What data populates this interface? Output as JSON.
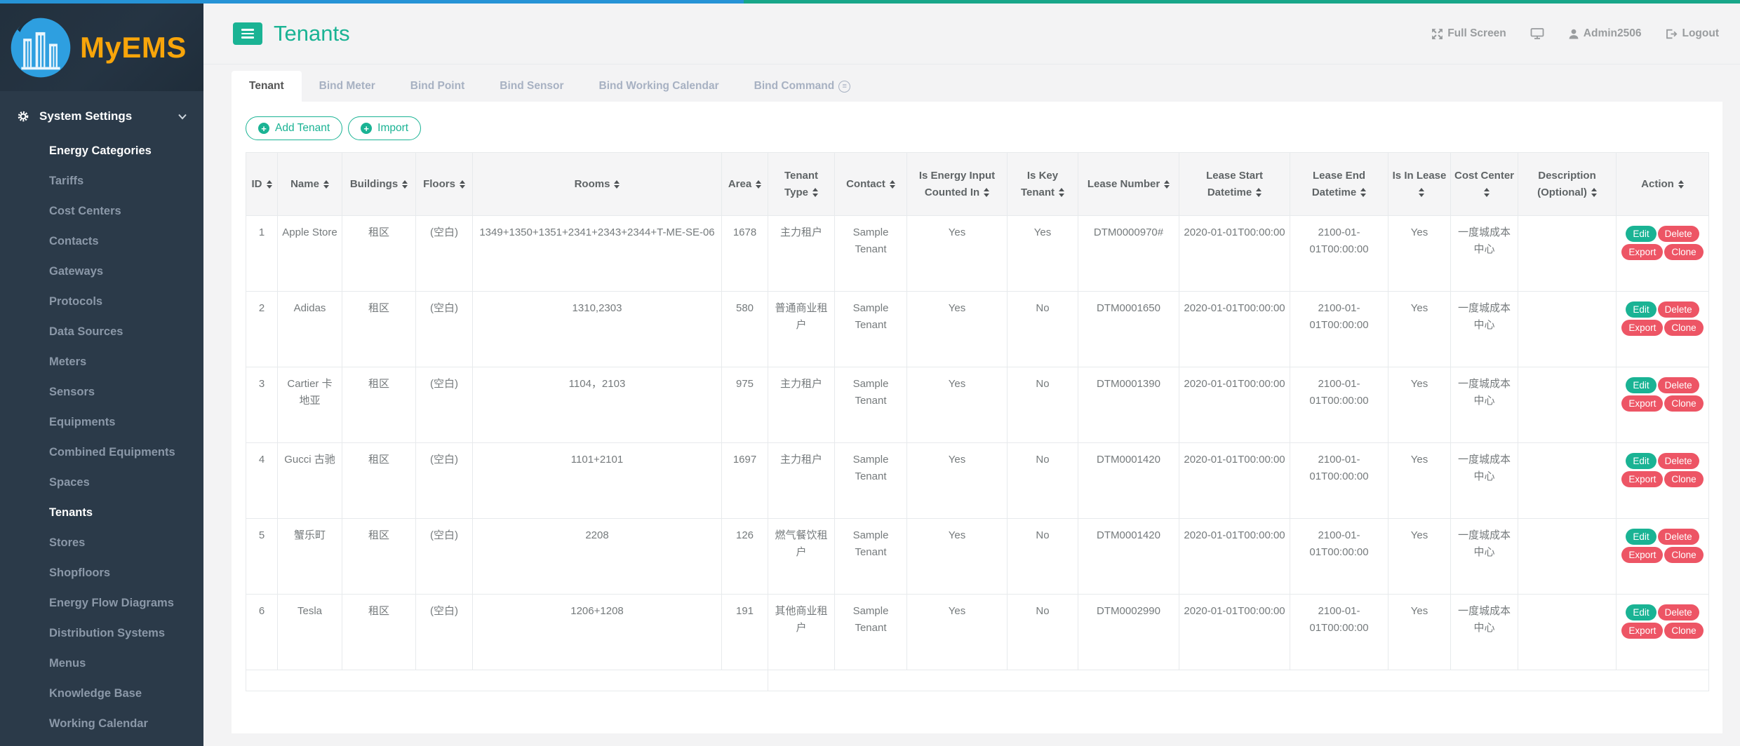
{
  "topbar": {
    "full_screen_label": "Full Screen",
    "username": "Admin2506",
    "logout_label": "Logout"
  },
  "brand": {
    "name": "MyEMS"
  },
  "sidebar": {
    "section_label": "System Settings",
    "items": [
      {
        "label": "Energy Categories",
        "active": true
      },
      {
        "label": "Tariffs",
        "active": false
      },
      {
        "label": "Cost Centers",
        "active": false
      },
      {
        "label": "Contacts",
        "active": false
      },
      {
        "label": "Gateways",
        "active": false
      },
      {
        "label": "Protocols",
        "active": false
      },
      {
        "label": "Data Sources",
        "active": false
      },
      {
        "label": "Meters",
        "active": false
      },
      {
        "label": "Sensors",
        "active": false
      },
      {
        "label": "Equipments",
        "active": false
      },
      {
        "label": "Combined Equipments",
        "active": false
      },
      {
        "label": "Spaces",
        "active": false
      },
      {
        "label": "Tenants",
        "active": true
      },
      {
        "label": "Stores",
        "active": false
      },
      {
        "label": "Shopfloors",
        "active": false
      },
      {
        "label": "Energy Flow Diagrams",
        "active": false
      },
      {
        "label": "Distribution Systems",
        "active": false
      },
      {
        "label": "Menus",
        "active": false
      },
      {
        "label": "Knowledge Base",
        "active": false
      },
      {
        "label": "Working Calendar",
        "active": false
      }
    ]
  },
  "header": {
    "title": "Tenants"
  },
  "tabs": [
    {
      "label": "Tenant",
      "active": true,
      "icon": ""
    },
    {
      "label": "Bind Meter",
      "active": false,
      "icon": ""
    },
    {
      "label": "Bind Point",
      "active": false,
      "icon": ""
    },
    {
      "label": "Bind Sensor",
      "active": false,
      "icon": ""
    },
    {
      "label": "Bind Working Calendar",
      "active": false,
      "icon": ""
    },
    {
      "label": "Bind Command",
      "active": false,
      "icon": "command-circle-icon"
    }
  ],
  "toolbar": {
    "add_label": "Add Tenant",
    "import_label": "Import"
  },
  "table": {
    "columns": [
      {
        "key": "id",
        "label": "ID"
      },
      {
        "key": "name",
        "label": "Name"
      },
      {
        "key": "buildings",
        "label": "Buildings"
      },
      {
        "key": "floors",
        "label": "Floors"
      },
      {
        "key": "rooms",
        "label": "Rooms"
      },
      {
        "key": "area",
        "label": "Area"
      },
      {
        "key": "tenant-type",
        "label": "Tenant Type"
      },
      {
        "key": "contact",
        "label": "Contact"
      },
      {
        "key": "is-energy-input-counted-in",
        "label": "Is Energy Input Counted In"
      },
      {
        "key": "is-key-tenant",
        "label": "Is Key Tenant"
      },
      {
        "key": "lease-number",
        "label": "Lease Number"
      },
      {
        "key": "lease-start-datetime",
        "label": "Lease Start Datetime"
      },
      {
        "key": "lease-end-datetime",
        "label": "Lease End Datetime"
      },
      {
        "key": "is-in-lease",
        "label": "Is In Lease"
      },
      {
        "key": "cost-center",
        "label": "Cost Center"
      },
      {
        "key": "description",
        "label": "Description (Optional)"
      },
      {
        "key": "action",
        "label": "Action"
      }
    ],
    "rows": [
      [
        "1",
        "Apple Store",
        "租区",
        "(空白)",
        "1349+1350+1351+2341+2343+2344+T-ME-SE-06",
        "1678",
        "主力租户",
        "Sample Tenant",
        "Yes",
        "Yes",
        "DTM0000970#",
        "2020-01-01T00:00:00",
        "2100-01-01T00:00:00",
        "Yes",
        "一度城成本中心",
        ""
      ],
      [
        "2",
        "Adidas",
        "租区",
        "(空白)",
        "1310,2303",
        "580",
        "普通商业租户",
        "Sample Tenant",
        "Yes",
        "No",
        "DTM0001650",
        "2020-01-01T00:00:00",
        "2100-01-01T00:00:00",
        "Yes",
        "一度城成本中心",
        ""
      ],
      [
        "3",
        "Cartier 卡地亚",
        "租区",
        "(空白)",
        "1104，2103",
        "975",
        "主力租户",
        "Sample Tenant",
        "Yes",
        "No",
        "DTM0001390",
        "2020-01-01T00:00:00",
        "2100-01-01T00:00:00",
        "Yes",
        "一度城成本中心",
        ""
      ],
      [
        "4",
        "Gucci 古驰",
        "租区",
        "(空白)",
        "1101+2101",
        "1697",
        "主力租户",
        "Sample Tenant",
        "Yes",
        "No",
        "DTM0001420",
        "2020-01-01T00:00:00",
        "2100-01-01T00:00:00",
        "Yes",
        "一度城成本中心",
        ""
      ],
      [
        "5",
        "蟹乐町",
        "租区",
        "(空白)",
        "2208",
        "126",
        "燃气餐饮租户",
        "Sample Tenant",
        "Yes",
        "No",
        "DTM0001420",
        "2020-01-01T00:00:00",
        "2100-01-01T00:00:00",
        "Yes",
        "一度城成本中心",
        ""
      ],
      [
        "6",
        "Tesla",
        "租区",
        "(空白)",
        "1206+1208",
        "191",
        "其他商业租户",
        "Sample Tenant",
        "Yes",
        "No",
        "DTM0002990",
        "2020-01-01T00:00:00",
        "2100-01-01T00:00:00",
        "Yes",
        "一度城成本中心",
        ""
      ]
    ],
    "actions": [
      {
        "label": "Edit",
        "style": "green"
      },
      {
        "label": "Delete",
        "style": "red"
      },
      {
        "label": "Export",
        "style": "red"
      },
      {
        "label": "Clone",
        "style": "red"
      }
    ]
  },
  "colors": {
    "accent_green": "#1ab394",
    "danger_red": "#ed5565",
    "brand_orange": "#f8a50a",
    "sidebar_bg": "#2b3a49",
    "pace_blue": "#2693d6",
    "logo_blue": "#2e9fe0"
  }
}
